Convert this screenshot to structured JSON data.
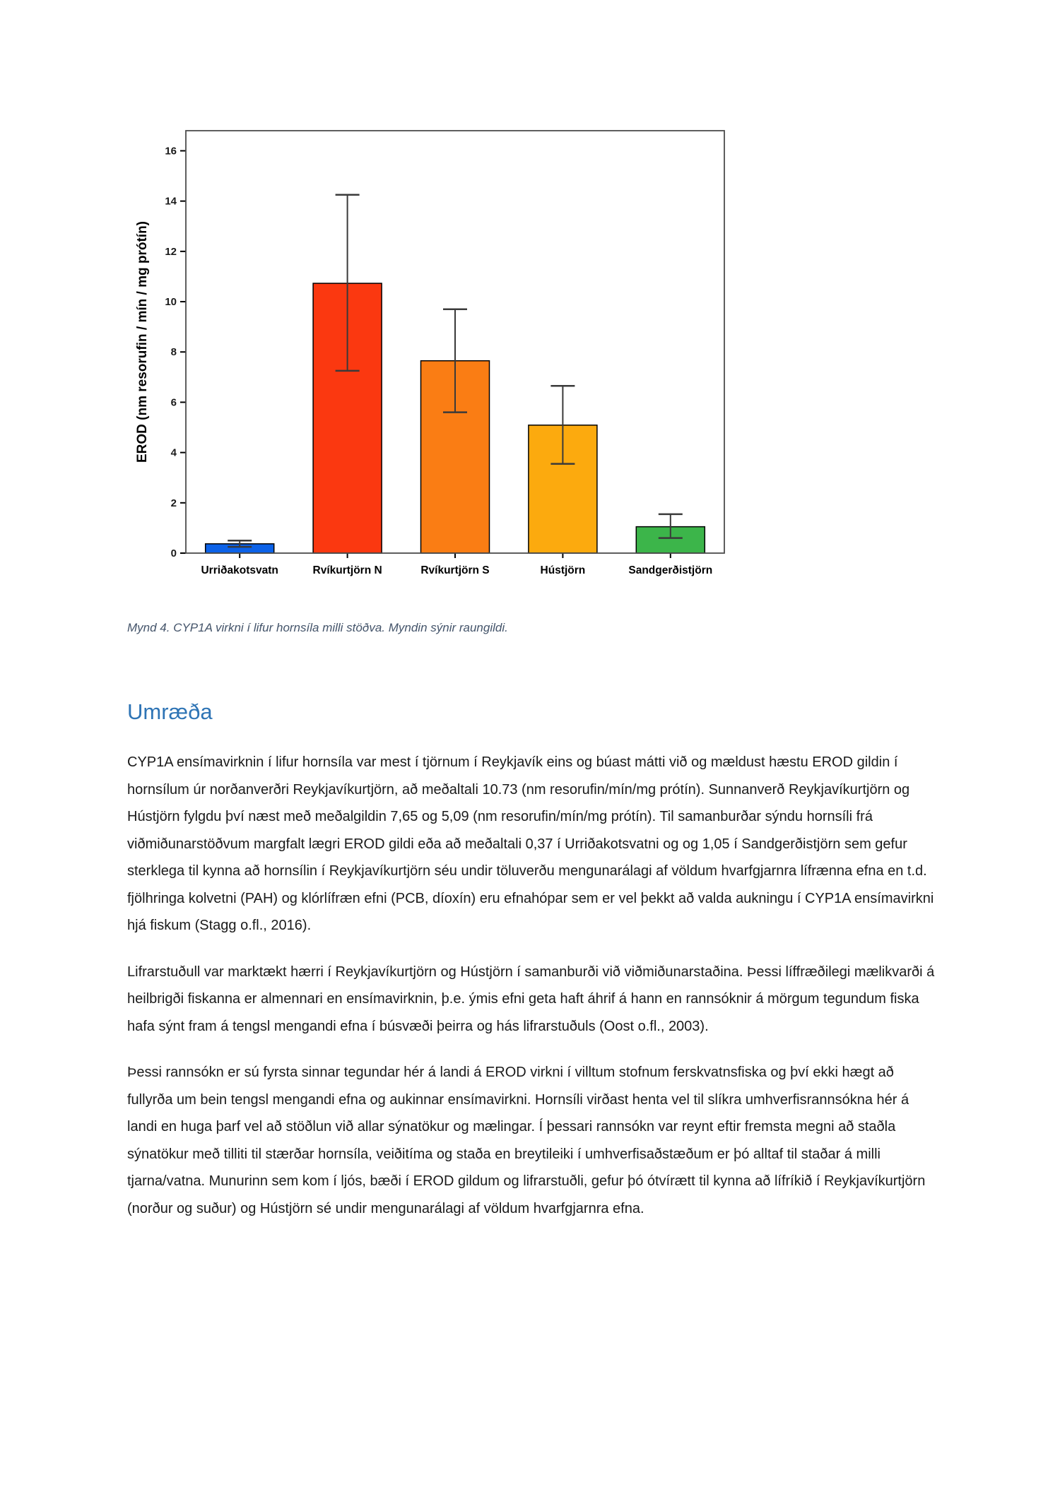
{
  "figure": {
    "caption": "Mynd 4. CYP1A virkni í lifur hornsíla milli stöðva. Myndin sýnir raungildi."
  },
  "chart_data": {
    "type": "bar",
    "title": "",
    "xlabel": "",
    "ylabel": "EROD (nm resorufin / mín / mg prótín)",
    "categories": [
      "Urriðakotsvatn",
      "Rvíkurtjörn N",
      "Rvíkurtjörn S",
      "Hústjörn",
      "Sandgerðistjörn"
    ],
    "values": [
      0.37,
      10.73,
      7.65,
      5.09,
      1.05
    ],
    "error_low": [
      0.25,
      7.25,
      5.6,
      3.55,
      0.6
    ],
    "error_high": [
      0.5,
      14.25,
      9.7,
      6.65,
      1.55
    ],
    "bar_colors": [
      "#0c62e8",
      "#fb3810",
      "#fa7d14",
      "#fcaa0e",
      "#3cb54a"
    ],
    "bar_stroke": "#000000",
    "error_color": "#3a3a3a",
    "frame_color": "#4d4d4d",
    "ylim": [
      0,
      16.8
    ],
    "yticks": [
      0,
      2,
      4,
      6,
      8,
      10,
      12,
      14,
      16
    ],
    "grid": false,
    "legend": "none"
  },
  "discussion": {
    "heading": "Umræða",
    "paragraphs": [
      "CYP1A ensímavirknin í lifur hornsíla var mest í tjörnum í Reykjavík eins og búast mátti við og mældust hæstu EROD gildin í hornsílum úr norðanverðri Reykjavíkurtjörn, að meðaltali 10.73 (nm resorufin/mín/mg prótín). Sunnanverð Reykjavíkurtjörn og Hústjörn fylgdu því næst með meðalgildin 7,65 og 5,09 (nm resorufin/mín/mg prótín). Til samanburðar sýndu hornsíli frá viðmiðunarstöðvum margfalt lægri EROD gildi eða að meðaltali 0,37 í Urriðakotsvatni og og 1,05 í Sandgerðistjörn sem gefur sterklega til kynna að hornsílin í Reykjavíkurtjörn séu undir töluverðu mengunarálagi af völdum hvarfgjarnra lífrænna efna en t.d. fjölhringa kolvetni (PAH) og klórlífræn efni (PCB, díoxín) eru efnahópar sem er vel þekkt að valda aukningu í CYP1A ensímavirkni hjá fiskum (Stagg o.fl., 2016).",
      "Lifrarstuðull var marktækt hærri í Reykjavíkurtjörn og Hústjörn í samanburði við viðmiðunarstaðina. Þessi líffræðilegi mælikvarði á heilbrigði fiskanna er almennari en ensímavirknin, þ.e. ýmis efni geta haft áhrif á hann en rannsóknir á mörgum tegundum fiska hafa sýnt fram á tengsl mengandi efna í búsvæði þeirra og hás lifrarstuðuls (Oost o.fl., 2003).",
      "Þessi rannsókn er sú fyrsta sinnar tegundar hér á landi á EROD virkni í villtum stofnum ferskvatnsfiska og því ekki hægt að fullyrða um bein tengsl mengandi efna og aukinnar ensímavirkni. Hornsíli virðast henta vel til slíkra umhverfisrannsókna hér á landi en huga þarf vel að stöðlun við allar sýnatökur og mælingar. Í þessari rannsókn var reynt eftir fremsta megni að staðla sýnatökur með tilliti til stærðar hornsíla, veiðitíma og staða en breytileiki í umhverfisaðstæðum er þó alltaf til staðar á milli tjarna/vatna. Munurinn sem kom í ljós, bæði í EROD gildum og lifrarstuðli, gefur þó ótvírætt til kynna að lífríkið í Reykjavíkurtjörn (norður og suður) og Hústjörn sé undir mengunarálagi af völdum hvarfgjarnra efna."
    ]
  }
}
